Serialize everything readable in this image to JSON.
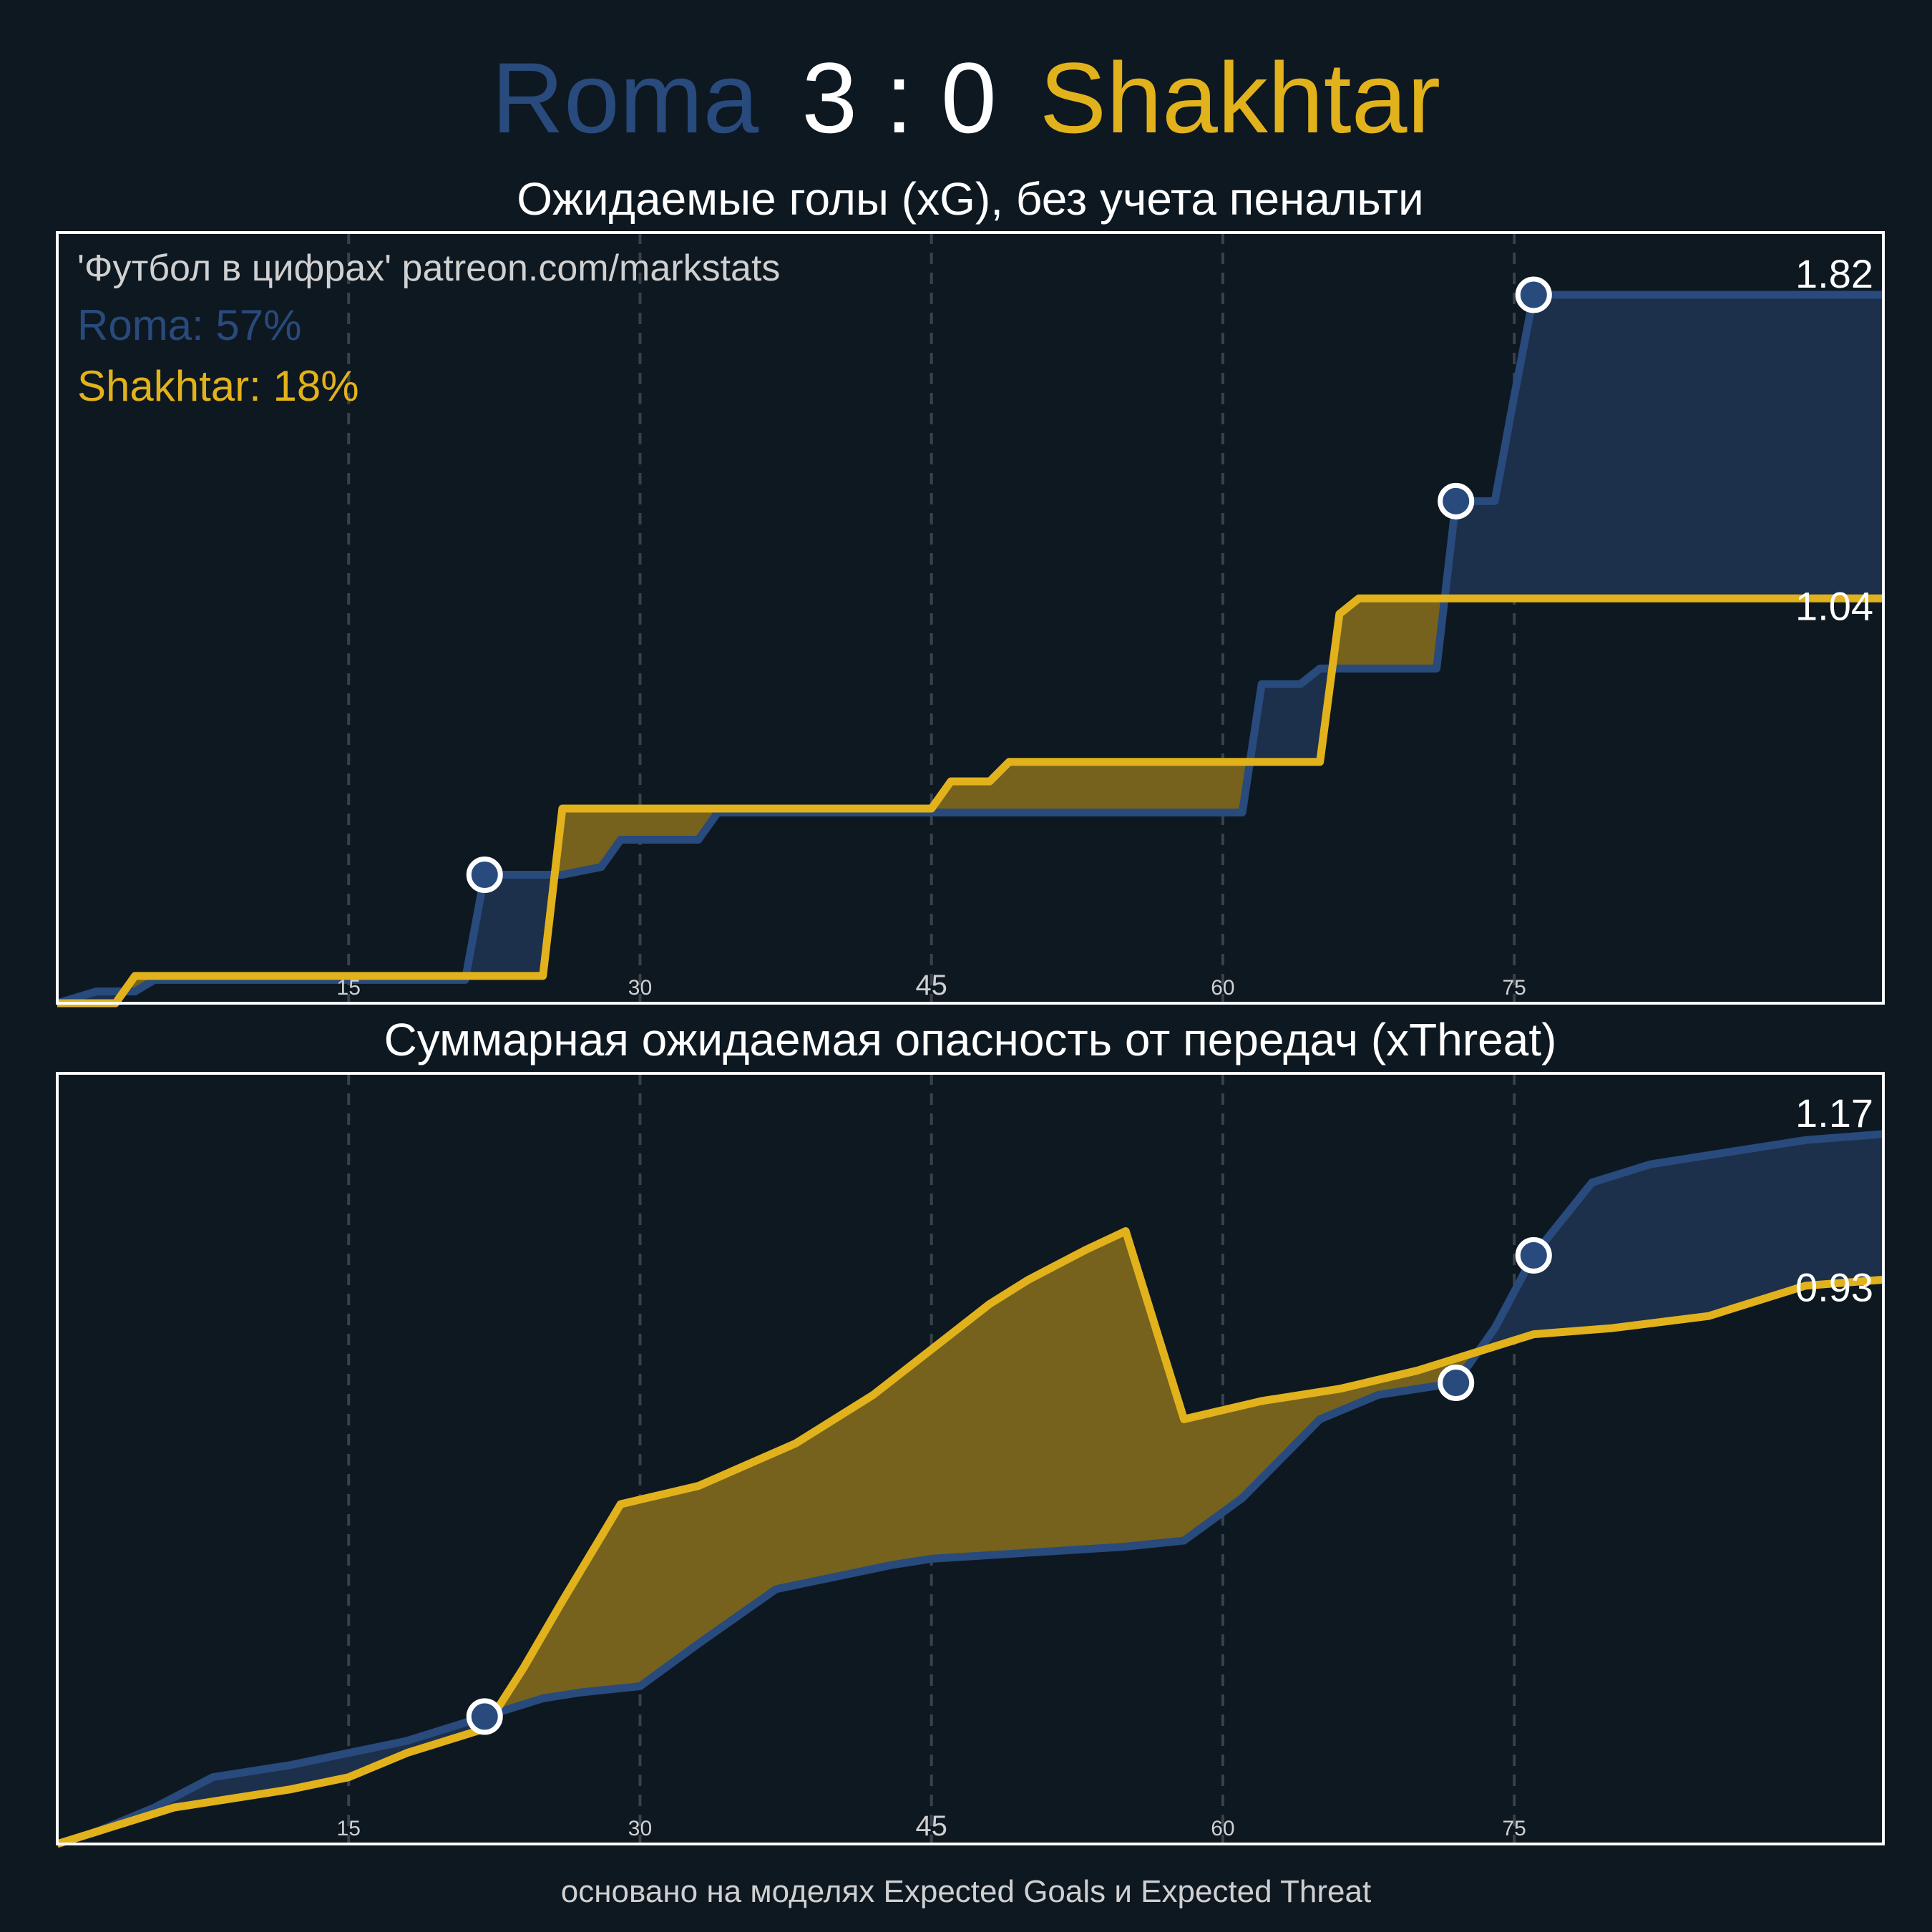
{
  "header": {
    "home_team": "Roma",
    "score": "3 : 0",
    "away_team": "Shakhtar"
  },
  "colors": {
    "background": "#0e1821",
    "home": "#284a7c",
    "home_fill": "#1c2f4b",
    "away": "#e2b21c",
    "away_fill": "#76621d",
    "frame": "#ffffff",
    "grid": "#39424a",
    "watermark": "#d0d0d0"
  },
  "legend": {
    "watermark": "'Футбол в цифрах' patreon.com/markstats",
    "home_win_prob": "Roma: 57%",
    "away_win_prob": "Shakhtar: 18%"
  },
  "footer": "основано на моделях Expected Goals и Expected Threat",
  "chart_data": [
    {
      "type": "line",
      "title": "Ожидаемые голы (xG), без учета пенальти",
      "step": true,
      "xlim": [
        0,
        94
      ],
      "ylim": [
        0,
        1.98
      ],
      "grid": "vertical dashed at 15, 30, 45, 60, 75",
      "xticks": [
        15,
        30,
        45,
        60,
        75
      ],
      "xtick_labels": [
        "15",
        "30",
        "45",
        "60",
        "75"
      ],
      "series": [
        {
          "name": "Roma",
          "x": [
            0,
            2,
            4,
            5,
            21,
            22,
            26,
            28,
            29,
            33,
            34,
            61,
            62,
            64,
            65,
            71,
            72,
            74,
            75,
            76,
            94
          ],
          "y": [
            0,
            0.03,
            0.03,
            0.06,
            0.06,
            0.33,
            0.33,
            0.35,
            0.42,
            0.42,
            0.49,
            0.49,
            0.82,
            0.82,
            0.86,
            0.86,
            1.29,
            1.29,
            1.56,
            1.82,
            1.82
          ],
          "end_label": "1.82"
        },
        {
          "name": "Shakhtar",
          "x": [
            0,
            3,
            4,
            25,
            26,
            45,
            46,
            48,
            49,
            65,
            66,
            67,
            94
          ],
          "y": [
            0,
            0,
            0.07,
            0.07,
            0.5,
            0.5,
            0.57,
            0.57,
            0.62,
            0.62,
            1.0,
            1.04,
            1.04
          ],
          "end_label": "1.04"
        }
      ],
      "goals": [
        {
          "team": "Roma",
          "minute": 22,
          "value": 0.33
        },
        {
          "team": "Roma",
          "minute": 72,
          "value": 1.29
        },
        {
          "team": "Roma",
          "minute": 76,
          "value": 1.82
        }
      ]
    },
    {
      "type": "line",
      "title": "Суммарная ожидаемая опасность от передач (xThreat)",
      "step": false,
      "xlim": [
        0,
        94
      ],
      "ylim": [
        0,
        1.27
      ],
      "grid": "vertical dashed at 15, 30, 45, 60, 75",
      "xticks": [
        15,
        30,
        45,
        60,
        75
      ],
      "xtick_labels": [
        "15",
        "30",
        "45",
        "60",
        "75"
      ],
      "series": [
        {
          "name": "Roma",
          "x": [
            0,
            2,
            5,
            8,
            12,
            15,
            18,
            22,
            25,
            27,
            30,
            33,
            37,
            40,
            43,
            45,
            50,
            55,
            58,
            61,
            65,
            68,
            72,
            74,
            76,
            78,
            79,
            82,
            86,
            90,
            94
          ],
          "y": [
            0,
            0.02,
            0.06,
            0.11,
            0.13,
            0.15,
            0.17,
            0.21,
            0.24,
            0.25,
            0.26,
            0.33,
            0.42,
            0.44,
            0.46,
            0.47,
            0.48,
            0.49,
            0.5,
            0.57,
            0.7,
            0.74,
            0.76,
            0.85,
            0.97,
            1.05,
            1.09,
            1.12,
            1.14,
            1.16,
            1.17
          ],
          "end_label": "1.17"
        },
        {
          "name": "Shakhtar",
          "x": [
            0,
            3,
            6,
            10,
            12,
            15,
            18,
            22,
            24,
            26,
            29,
            33,
            38,
            42,
            46,
            48,
            50,
            53,
            55,
            58,
            62,
            66,
            70,
            74,
            76,
            80,
            85,
            88,
            90,
            94
          ],
          "y": [
            0,
            0.03,
            0.06,
            0.08,
            0.09,
            0.11,
            0.15,
            0.19,
            0.29,
            0.4,
            0.56,
            0.59,
            0.66,
            0.74,
            0.84,
            0.89,
            0.93,
            0.98,
            1.01,
            0.7,
            0.73,
            0.75,
            0.78,
            0.82,
            0.84,
            0.85,
            0.87,
            0.9,
            0.92,
            0.93
          ],
          "end_label": "0.93"
        }
      ],
      "goals": [
        {
          "team": "Roma",
          "minute": 22,
          "value": 0.21
        },
        {
          "team": "Roma",
          "minute": 72,
          "value": 0.76
        },
        {
          "team": "Roma",
          "minute": 76,
          "value": 0.97
        }
      ]
    }
  ]
}
